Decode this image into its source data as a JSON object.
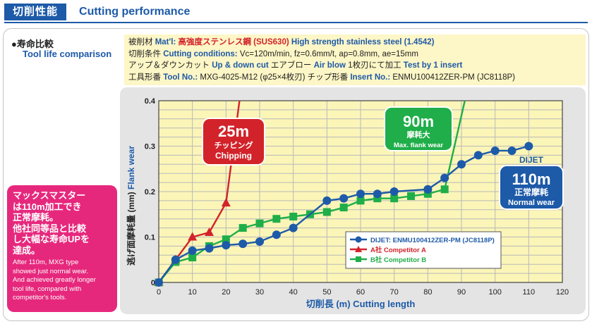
{
  "header": {
    "tag": "切削性能",
    "subtitle": "Cutting performance"
  },
  "section": {
    "title_jp": "寿命比較",
    "title_en": "Tool life comparison"
  },
  "conditions": {
    "line1": {
      "jp1": "被削材",
      "en1": "Mat'l:",
      "red_jp": "高強度ステンレス鋼 (SUS630)",
      "en2": "High strength stainless steel (1.4542)"
    },
    "line2": {
      "jp1": "切削条件",
      "en1": "Cutting conditions:",
      "text": "Vc=120m/min, fz=0.6mm/t, ap=0.8mm, ae=15mm"
    },
    "line3": {
      "jp1": "アップ＆ダウンカット",
      "en1": "Up & down cut",
      "jp2": "エアブロー",
      "en2": "Air blow",
      "jp3": "1枚刃にて加工",
      "en3": "Test by 1 insert"
    },
    "line4": {
      "jp1": "工具形番",
      "en1": "Tool No.:",
      "text1": "MXG-4025-M12 (φ25×4枚刃)",
      "jp2": "チップ形番",
      "en2": "Insert No.:",
      "text2": "ENMU100412ZER-PM (JC8118P)"
    }
  },
  "callout": {
    "jp_lines": [
      "マックスマスター",
      "は110m加工でき",
      "正常摩耗。",
      "他社同等品と比較",
      "し大幅な寿命UPを",
      "達成。"
    ],
    "en_lines": [
      "After 110m, MXG type",
      "showed just normal wear.",
      "And achieved greatly longer",
      "tool life, compared with",
      "competitor's tools."
    ]
  },
  "colors": {
    "dijet": "#1d5aa8",
    "competitor_a": "#d2232a",
    "competitor_b": "#1fae49",
    "plot_bg": "#fbf5b8",
    "grid": "#b9b9b9",
    "pink": "#e6287d"
  },
  "chart_data": {
    "type": "line",
    "xlabel": "切削長 (m) Cutting length",
    "ylabel_jp": "逃げ面摩耗量 (mm)",
    "ylabel_en": "Flank wear",
    "xlim": [
      0,
      120
    ],
    "ylim": [
      0,
      0.4
    ],
    "xticks": [
      0,
      10,
      20,
      30,
      40,
      50,
      60,
      70,
      80,
      90,
      100,
      110,
      120
    ],
    "yticks": [
      0,
      0.1,
      0.2,
      0.3,
      0.4
    ],
    "grid": true,
    "legend_position": "bottom-right",
    "series": [
      {
        "name": "DIJET: ENMU100412ZER-PM (JC8118P)",
        "key": "dijet",
        "marker": "circle",
        "x": [
          0,
          5,
          10,
          15,
          20,
          25,
          30,
          35,
          40,
          50,
          55,
          60,
          65,
          70,
          80,
          85,
          90,
          95,
          100,
          105,
          110
        ],
        "y": [
          0,
          0.05,
          0.07,
          0.075,
          0.082,
          0.085,
          0.09,
          0.105,
          0.12,
          0.18,
          0.185,
          0.195,
          0.195,
          0.2,
          0.205,
          0.23,
          0.26,
          0.28,
          0.29,
          0.29,
          0.3
        ]
      },
      {
        "name": "A社 Competitor A",
        "key": "competitor_a",
        "marker": "triangle",
        "x": [
          0,
          5,
          10,
          15,
          20
        ],
        "y": [
          0,
          0.05,
          0.1,
          0.11,
          0.175
        ],
        "failure": {
          "x": [
            20,
            24
          ],
          "y": [
            0.175,
            0.4
          ]
        }
      },
      {
        "name": "B社 Competitor B",
        "key": "competitor_b",
        "marker": "square",
        "x": [
          0,
          5,
          10,
          15,
          20,
          25,
          30,
          35,
          40,
          45,
          50,
          55,
          60,
          65,
          70,
          75,
          80,
          85
        ],
        "y": [
          0,
          0.045,
          0.055,
          0.08,
          0.095,
          0.12,
          0.13,
          0.14,
          0.145,
          0.15,
          0.155,
          0.165,
          0.18,
          0.185,
          0.185,
          0.19,
          0.195,
          0.205
        ],
        "failure": {
          "x": [
            85,
            91
          ],
          "y": [
            0.205,
            0.4
          ]
        }
      }
    ],
    "annotations": [
      {
        "key": "competitor_a",
        "big": "25m",
        "jp": "チッピング",
        "en": "Chipping"
      },
      {
        "key": "competitor_b",
        "big": "90m",
        "jp": "摩耗大",
        "en": "Max. flank wear"
      },
      {
        "key": "dijet",
        "top": "DIJET",
        "big": "110m",
        "jp": "正常摩耗",
        "en": "Normal wear"
      }
    ]
  }
}
